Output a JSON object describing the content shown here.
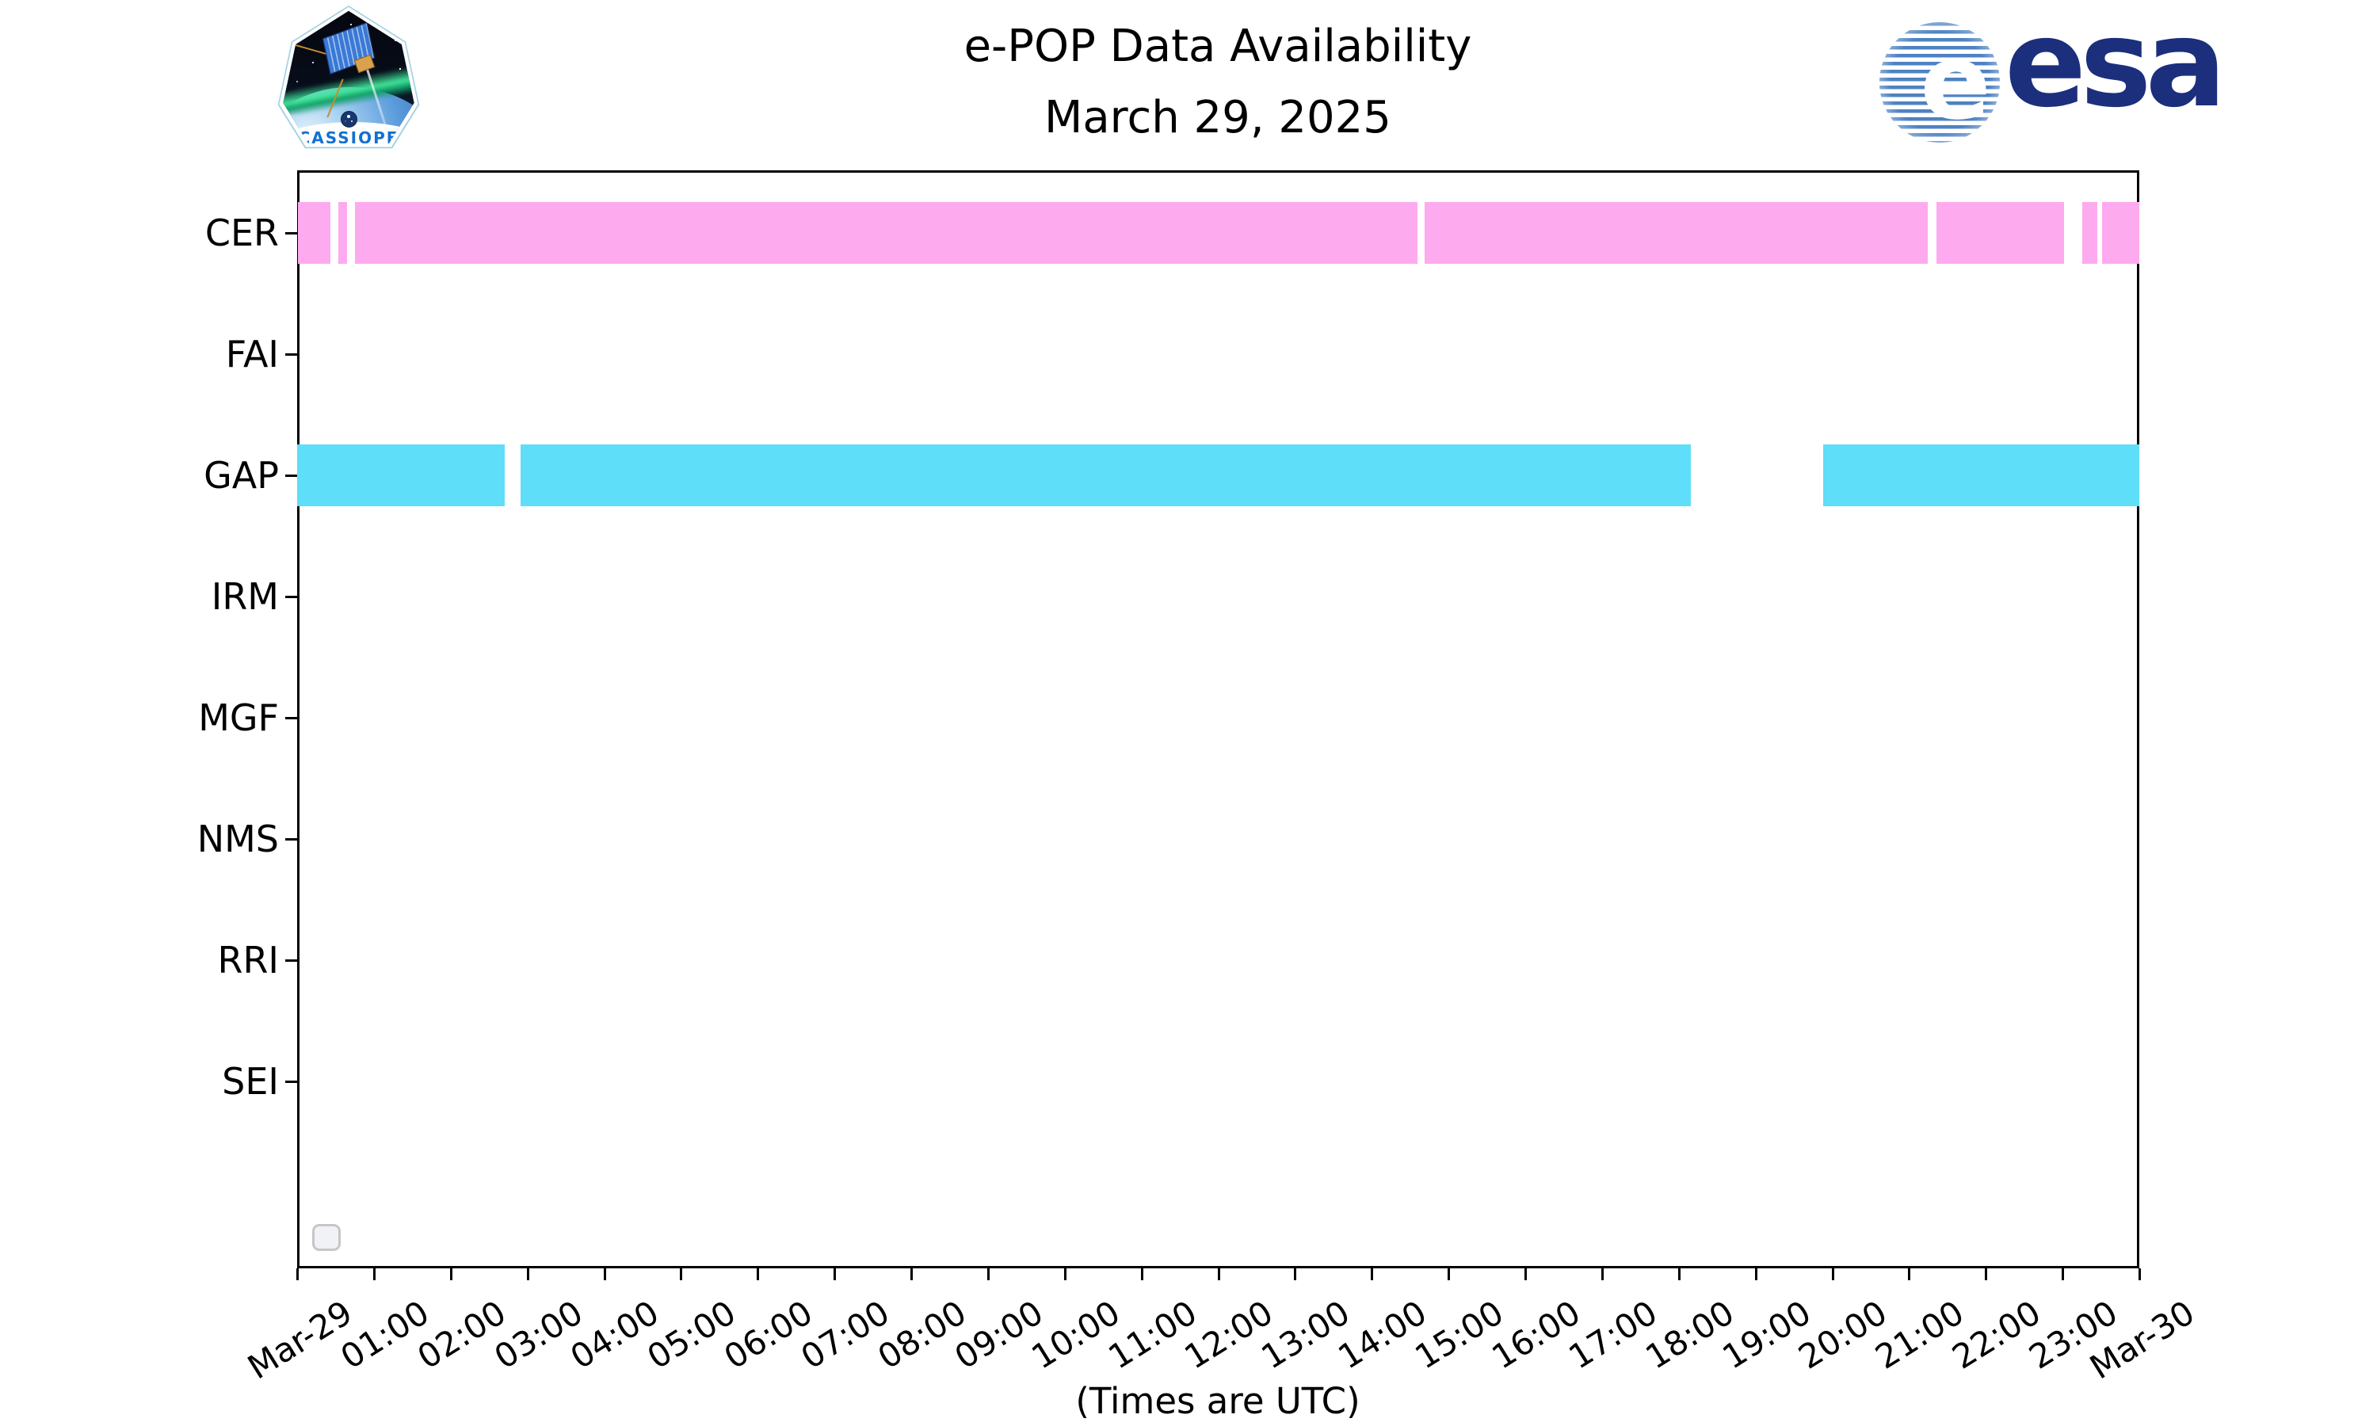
{
  "header": {
    "title_line1": "e-POP Data Availability",
    "title_line2": "March 29, 2025"
  },
  "logos": {
    "cassiope": {
      "label": "CASSIOPE"
    },
    "esa": {
      "label": "esa",
      "brand_color": "#1b2f7d"
    }
  },
  "chart_data": {
    "type": "timeline",
    "title": "e-POP Data Availability",
    "subtitle": "March 29, 2025",
    "xlabel": "(Times are UTC)",
    "x_axis": {
      "start": "Mar-29 00:00 UTC",
      "end": "Mar-30 00:00 UTC",
      "tick_interval_hours": 1,
      "tick_labels": [
        "Mar-29",
        "01:00",
        "02:00",
        "03:00",
        "04:00",
        "05:00",
        "06:00",
        "07:00",
        "08:00",
        "09:00",
        "10:00",
        "11:00",
        "12:00",
        "13:00",
        "14:00",
        "15:00",
        "16:00",
        "17:00",
        "18:00",
        "19:00",
        "20:00",
        "21:00",
        "22:00",
        "23:00",
        "Mar-30"
      ]
    },
    "instruments": [
      "CER",
      "FAI",
      "GAP",
      "IRM",
      "MGF",
      "NMS",
      "RRI",
      "SEI"
    ],
    "series": [
      {
        "instrument": "CER",
        "color": "#feaaef",
        "segments": [
          {
            "start": "00:01",
            "end": "00:26",
            "f0": 0.0004,
            "f1": 0.0181
          },
          {
            "start": "00:32",
            "end": "00:39",
            "f0": 0.0224,
            "f1": 0.0271
          },
          {
            "start": "00:45",
            "end": "14:36",
            "f0": 0.0314,
            "f1": 0.6082
          },
          {
            "start": "14:41",
            "end": "21:15",
            "f0": 0.612,
            "f1": 0.8852
          },
          {
            "start": "21:21",
            "end": "23:01",
            "f0": 0.8899,
            "f1": 0.9591
          },
          {
            "start": "23:15",
            "end": "23:27",
            "f0": 0.969,
            "f1": 0.9772
          },
          {
            "start": "23:31",
            "end": "24:00",
            "f0": 0.9798,
            "f1": 1.0
          }
        ]
      },
      {
        "instrument": "GAP",
        "color": "#5edef8",
        "segments": [
          {
            "start": "00:00",
            "end": "02:42",
            "f0": 0.0,
            "f1": 0.1127
          },
          {
            "start": "02:55",
            "end": "18:09",
            "f0": 0.1213,
            "f1": 0.7565
          },
          {
            "start": "19:53",
            "end": "24:00",
            "f0": 0.8284,
            "f1": 1.0
          }
        ]
      }
    ],
    "empty_instruments": [
      "FAI",
      "IRM",
      "MGF",
      "NMS",
      "RRI",
      "SEI"
    ],
    "legend": {
      "visible": true,
      "entries": []
    },
    "grid": false,
    "frame": true
  }
}
